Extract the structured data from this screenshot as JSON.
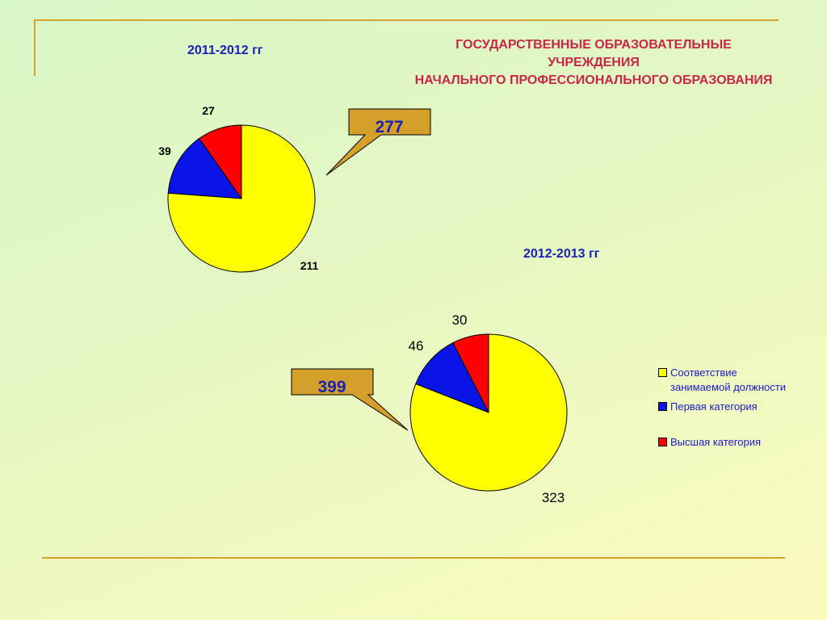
{
  "title": {
    "line1": "ГОСУДАРСТВЕННЫЕ ОБРАЗОВАТЕЛЬНЫЕ",
    "line2": "УЧРЕЖДЕНИЯ",
    "line3": "НАЧАЛЬНОГО ПРОФЕССИОНАЛЬНОГО ОБРАЗОВАНИЯ"
  },
  "colors": {
    "Соответствие занимаемой должности": "#ffff00",
    "Первая категория": "#0a14e6",
    "Высшая категория": "#ff0000"
  },
  "legend": [
    {
      "label_line1": "Соответствие",
      "label_line2": "занимаемой должности",
      "color": "#ffff00"
    },
    {
      "label_line1": "Первая категория",
      "label_line2": "",
      "color": "#0a14e6"
    },
    {
      "label_line1": "Высшая категория",
      "label_line2": "",
      "color": "#ff0000"
    }
  ],
  "chart_data": [
    {
      "type": "pie",
      "title": "2011-2012 гг",
      "total_callout": "277",
      "categories": [
        "Соответствие занимаемой должности",
        "Первая категория",
        "Высшая категория"
      ],
      "values": [
        211,
        39,
        27
      ]
    },
    {
      "type": "pie",
      "title": "2012-2013 гг",
      "total_callout": "399",
      "categories": [
        "Соответствие занимаемой должности",
        "Первая категория",
        "Высшая категория"
      ],
      "values": [
        323,
        46,
        30
      ]
    }
  ]
}
